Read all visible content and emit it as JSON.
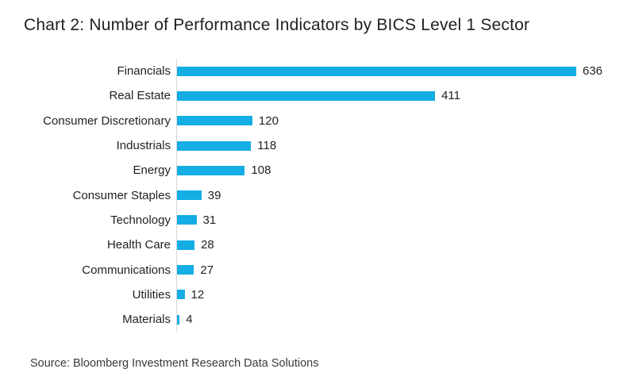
{
  "chart_data": {
    "type": "bar",
    "orientation": "horizontal",
    "title": "Chart 2: Number of Performance Indicators by BICS Level 1 Sector",
    "categories": [
      "Financials",
      "Real Estate",
      "Consumer Discretionary",
      "Industrials",
      "Energy",
      "Consumer Staples",
      "Technology",
      "Health Care",
      "Communications",
      "Utilities",
      "Materials"
    ],
    "values": [
      636,
      411,
      120,
      118,
      108,
      39,
      31,
      28,
      27,
      12,
      4
    ],
    "xlim": [
      0,
      636
    ],
    "grid": false,
    "legend": false,
    "value_labels_shown": true,
    "bar_color": "#14ade4",
    "axis_line_color": "#d9d9d9",
    "text_color": "#231f20"
  },
  "source": "Source: Bloomberg Investment Research Data Solutions"
}
